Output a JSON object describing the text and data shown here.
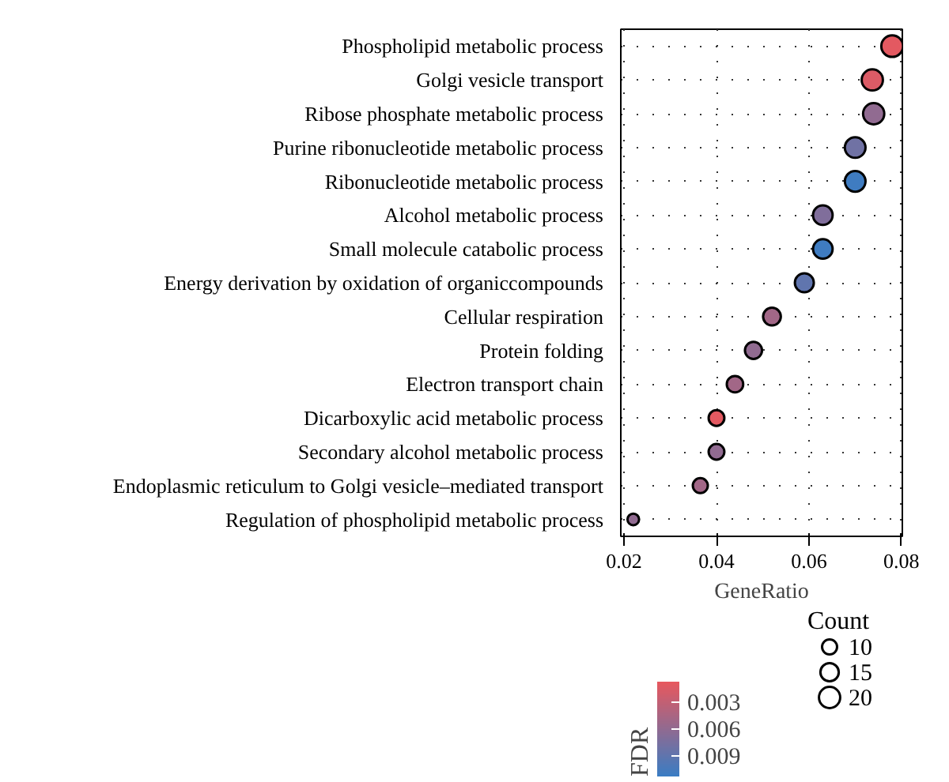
{
  "chart_data": {
    "type": "bubble",
    "xlabel": "GeneRatio",
    "legend_title": "Count",
    "clabel": "FDR",
    "categories": [
      "Phospholipid metabolic process",
      "Golgi vesicle transport",
      "Ribose phosphate metabolic process",
      "Purine ribonucleotide metabolic process",
      "Ribonucleotide metabolic process",
      "Alcohol metabolic process",
      "Small molecule catabolic process",
      "Energy derivation by oxidation of organiccompounds",
      "Cellular respiration",
      "Protein folding",
      "Electron transport chain",
      "Dicarboxylic acid metabolic process",
      "Secondary alcohol metabolic process",
      "Endoplasmic reticulum to Golgi vesicle–mediated transport",
      "Regulation of phospholipid metabolic process"
    ],
    "orientation": "horizontal",
    "values": [
      0.078,
      0.0737,
      0.074,
      0.07,
      0.07,
      0.063,
      0.063,
      0.059,
      0.052,
      0.048,
      0.044,
      0.04,
      0.04,
      0.0365,
      0.022
    ],
    "sizes": [
      21,
      20,
      20,
      19,
      19,
      17,
      17,
      16,
      14,
      13,
      12,
      11,
      11,
      10,
      6
    ],
    "size_legend": [
      10,
      15,
      20
    ],
    "cvalues": [
      0.001,
      0.0015,
      0.006,
      0.008,
      0.011,
      0.007,
      0.011,
      0.009,
      0.005,
      0.006,
      0.005,
      0.001,
      0.006,
      0.005,
      0.006
    ],
    "clim": [
      0.0007,
      0.0113
    ],
    "cticks": [
      0.003,
      0.006,
      0.009
    ],
    "xlim": [
      0.0193,
      0.0802
    ],
    "xticks": [
      {
        "value": 0.02,
        "label": "0.02"
      },
      {
        "value": 0.04,
        "label": "0.04"
      },
      {
        "value": 0.06,
        "label": "0.06"
      },
      {
        "value": 0.08,
        "label": "0.08"
      }
    ],
    "grid": true
  }
}
